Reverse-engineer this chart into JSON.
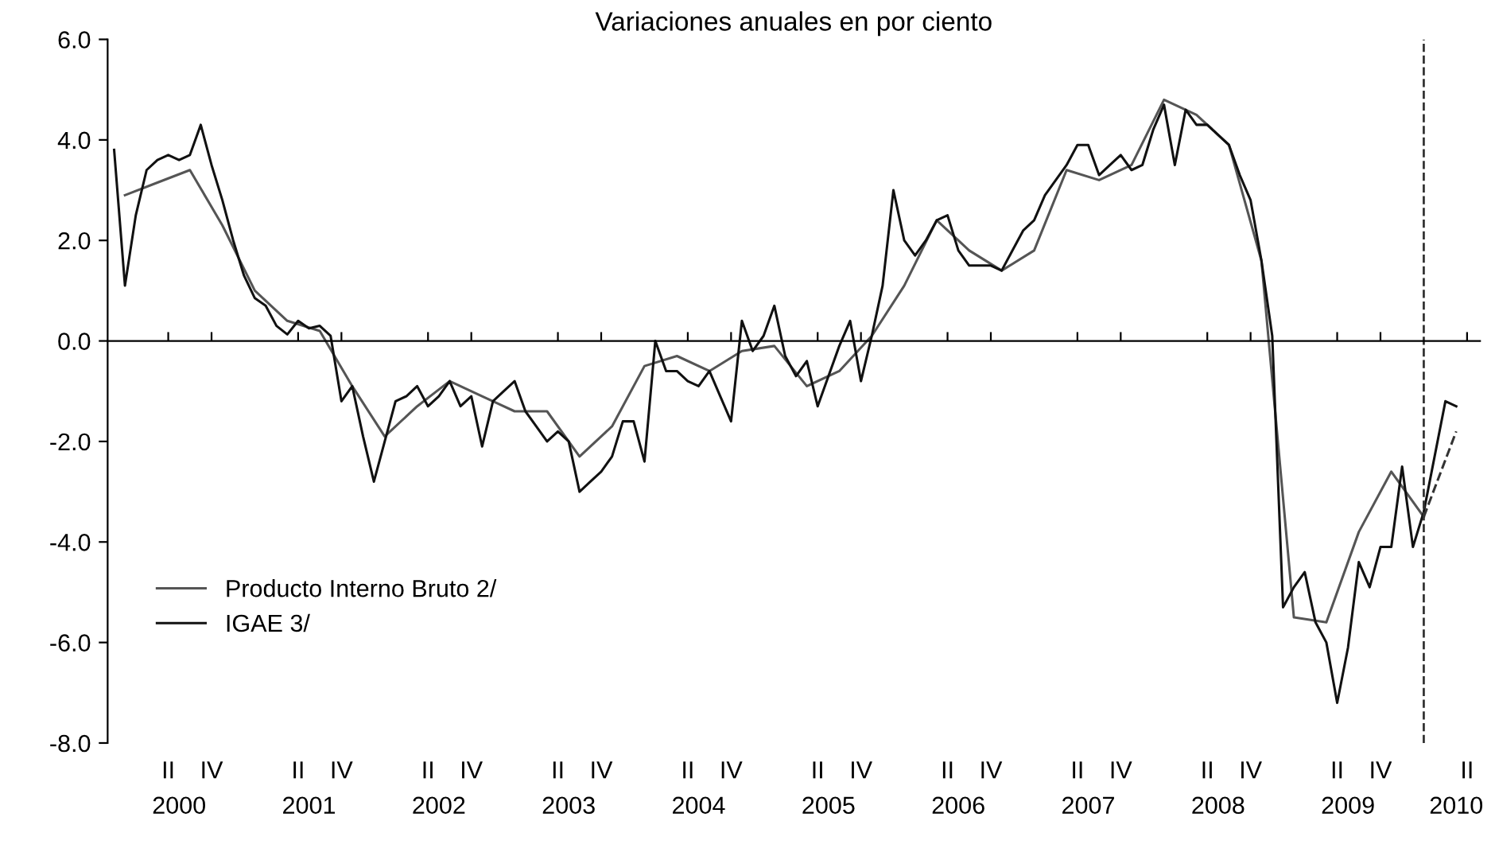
{
  "chart_data": {
    "type": "line",
    "title": "Variaciones anuales en por ciento",
    "categories": [
      null,
      null,
      null,
      null,
      null,
      "II",
      "2000",
      null,
      null,
      "IV",
      null,
      null,
      null,
      null,
      null,
      null,
      null,
      "II",
      "2001",
      null,
      null,
      "IV",
      null,
      null,
      null,
      null,
      null,
      null,
      null,
      "II",
      "2002",
      null,
      null,
      "IV",
      null,
      null,
      null,
      null,
      null,
      null,
      null,
      "II",
      "2003",
      null,
      null,
      "IV",
      null,
      null,
      null,
      null,
      null,
      null,
      null,
      "II",
      "2004",
      null,
      null,
      "IV",
      null,
      null,
      null,
      null,
      null,
      null,
      null,
      "II",
      "2005",
      null,
      null,
      "IV",
      null,
      null,
      null,
      null,
      null,
      null,
      null,
      "II",
      "2006",
      null,
      null,
      "IV",
      null,
      null,
      null,
      null,
      null,
      null,
      null,
      "II",
      "2007",
      null,
      null,
      "IV",
      null,
      null,
      null,
      null,
      null,
      null,
      null,
      "II",
      "2008",
      null,
      null,
      "IV",
      null,
      null,
      null,
      null,
      null,
      null,
      null,
      "II",
      "2009",
      null,
      null,
      "IV",
      null,
      null,
      null,
      null,
      null,
      null,
      "2010",
      "II"
    ],
    "series": [
      {
        "name": "Producto Interno Bruto 2/",
        "color": "#555555",
        "line_style": "solid",
        "values": [
          null,
          2.9,
          null,
          null,
          3.15,
          null,
          null,
          3.4,
          null,
          null,
          2.3,
          null,
          null,
          1.0,
          null,
          null,
          0.4,
          null,
          null,
          0.2,
          null,
          null,
          -0.9,
          null,
          null,
          -1.9,
          null,
          null,
          -1.3,
          null,
          null,
          -0.8,
          null,
          null,
          -1.1,
          null,
          null,
          -1.4,
          null,
          null,
          -1.4,
          null,
          null,
          -2.3,
          null,
          null,
          -1.7,
          null,
          null,
          -0.5,
          null,
          null,
          -0.3,
          null,
          null,
          -0.6,
          null,
          null,
          -0.2,
          null,
          null,
          -0.1,
          null,
          null,
          -0.9,
          null,
          null,
          -0.6,
          null,
          null,
          0.1,
          null,
          null,
          1.1,
          null,
          null,
          2.4,
          null,
          null,
          1.8,
          null,
          null,
          1.4,
          null,
          null,
          1.8,
          null,
          null,
          3.4,
          null,
          null,
          3.2,
          null,
          null,
          3.5,
          null,
          null,
          4.8,
          null,
          null,
          4.5,
          null,
          null,
          3.9,
          null,
          null,
          1.6,
          null,
          null,
          -5.5,
          null,
          null,
          -5.6,
          null,
          null,
          -3.8,
          null,
          null,
          -2.6,
          null,
          null,
          -3.5,
          null,
          null,
          null,
          null
        ]
      },
      {
        "name": "IGAE 3/",
        "color": "#111111",
        "line_style": "solid",
        "values": [
          3.8,
          1.1,
          2.5,
          3.4,
          3.6,
          3.7,
          3.6,
          3.7,
          4.3,
          3.5,
          2.8,
          2.0,
          1.3,
          0.85,
          0.7,
          0.3,
          0.13,
          0.4,
          0.25,
          0.3,
          0.1,
          -1.2,
          -0.9,
          -1.9,
          -2.8,
          -2.0,
          -1.2,
          -1.1,
          -0.9,
          -1.3,
          -1.1,
          -0.8,
          -1.3,
          -1.1,
          -2.1,
          -1.2,
          -1.0,
          -0.8,
          -1.4,
          -1.7,
          -2.0,
          -1.8,
          -2.0,
          -3.0,
          -2.8,
          -2.6,
          -2.3,
          -1.6,
          -1.6,
          -2.4,
          0.0,
          -0.6,
          -0.6,
          -0.8,
          -0.9,
          -0.6,
          -1.1,
          -1.6,
          0.4,
          -0.2,
          0.1,
          0.7,
          -0.3,
          -0.7,
          -0.4,
          -1.3,
          -0.7,
          -0.1,
          0.4,
          -0.8,
          0.1,
          1.1,
          3.0,
          2.0,
          1.7,
          2.0,
          2.4,
          2.5,
          1.8,
          1.5,
          1.5,
          1.5,
          1.4,
          1.8,
          2.2,
          2.4,
          2.9,
          3.2,
          3.5,
          3.9,
          3.9,
          3.3,
          3.5,
          3.7,
          3.4,
          3.5,
          4.2,
          4.7,
          3.5,
          4.6,
          4.3,
          4.3,
          4.1,
          3.9,
          3.3,
          2.8,
          1.6,
          0.1,
          -5.3,
          -4.9,
          -4.6,
          -5.6,
          -6.0,
          -7.2,
          -6.1,
          -4.4,
          -4.9,
          -4.1,
          -4.1,
          -2.5,
          -4.1,
          -3.4,
          -2.3,
          -1.2,
          -1.3,
          null
        ]
      },
      {
        "color": "#333333",
        "line_style": "dashed",
        "values": [
          null,
          null,
          null,
          null,
          null,
          null,
          null,
          null,
          null,
          null,
          null,
          null,
          null,
          null,
          null,
          null,
          null,
          null,
          null,
          null,
          null,
          null,
          null,
          null,
          null,
          null,
          null,
          null,
          null,
          null,
          null,
          null,
          null,
          null,
          null,
          null,
          null,
          null,
          null,
          null,
          null,
          null,
          null,
          null,
          null,
          null,
          null,
          null,
          null,
          null,
          null,
          null,
          null,
          null,
          null,
          null,
          null,
          null,
          null,
          null,
          null,
          null,
          null,
          null,
          null,
          null,
          null,
          null,
          null,
          null,
          null,
          null,
          null,
          null,
          null,
          null,
          null,
          null,
          null,
          null,
          null,
          null,
          null,
          null,
          null,
          null,
          null,
          null,
          null,
          null,
          null,
          null,
          null,
          null,
          null,
          null,
          null,
          null,
          null,
          null,
          null,
          null,
          null,
          null,
          null,
          null,
          null,
          null,
          null,
          null,
          null,
          null,
          null,
          null,
          null,
          null,
          null,
          null,
          null,
          null,
          null,
          -3.5,
          null,
          null,
          -1.8,
          null
        ]
      }
    ],
    "ylim": [
      -8,
      6
    ],
    "yticks": [
      {
        "value": -8,
        "label": "-8.0"
      },
      {
        "value": -6,
        "label": "-6.0"
      },
      {
        "value": -4,
        "label": "-4.0"
      },
      {
        "value": -2,
        "label": "-2.0"
      },
      {
        "value": 0,
        "label": "0.0"
      },
      {
        "value": 2,
        "label": "2.0"
      },
      {
        "value": 4,
        "label": "4.0"
      },
      {
        "value": 6,
        "label": "6.0"
      }
    ],
    "grid": false,
    "legend": "bottom left",
    "marker": "none"
  }
}
